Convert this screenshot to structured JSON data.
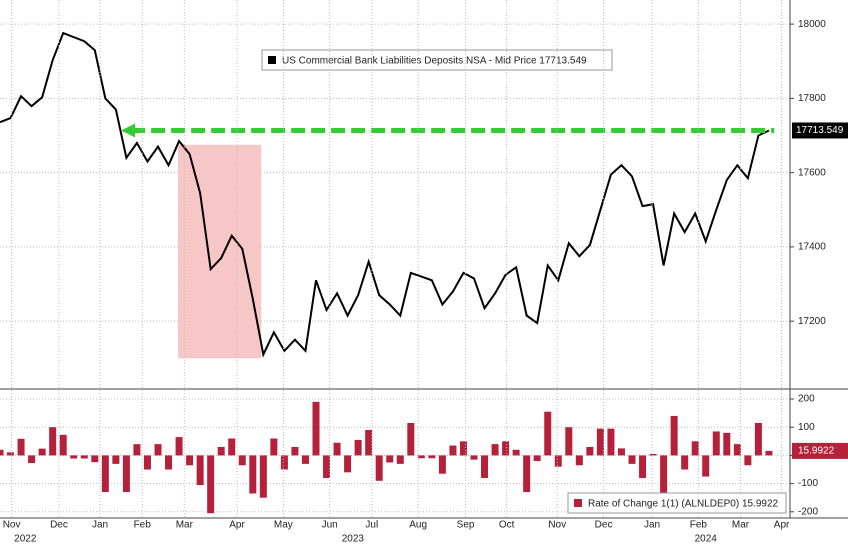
{
  "chart_data": [
    {
      "type": "line",
      "legend": "US Commercial Bank Liabilities Deposits NSA - Mid Price 17713.549",
      "last_label": "17713.549",
      "color": "#000000",
      "values": [
        17736,
        17747,
        17806,
        17779,
        17803,
        17903,
        17976,
        17965,
        17954,
        17930,
        17800,
        17770,
        17640,
        17680,
        17630,
        17670,
        17620,
        17685,
        17650,
        17545,
        17340,
        17370,
        17430,
        17395,
        17260,
        17110,
        17170,
        17120,
        17150,
        17120,
        17310,
        17230,
        17275,
        17215,
        17270,
        17360,
        17270,
        17245,
        17215,
        17330,
        17320,
        17310,
        17245,
        17280,
        17330,
        17315,
        17235,
        17275,
        17325,
        17345,
        17215,
        17195,
        17350,
        17310,
        17410,
        17375,
        17405,
        17500,
        17595,
        17620,
        17590,
        17510,
        17515,
        17350,
        17490,
        17440,
        17490,
        17415,
        17500,
        17580,
        17620,
        17585,
        17700,
        17713.549
      ],
      "xlim": [
        0,
        75
      ],
      "ylim": [
        17020,
        18065
      ],
      "yticks": [
        17200,
        17400,
        17600,
        17800,
        18000
      ],
      "grid": true,
      "highlight": {
        "x": [
          16.9,
          24.8
        ],
        "y": [
          17100,
          17675
        ],
        "color": "#f7c6c6"
      },
      "arrow": {
        "y": 17713.549,
        "x": [
          11.5,
          73.5
        ],
        "color": "#33cc33"
      }
    },
    {
      "type": "bar",
      "legend": "Rate of Change 1(1) (ALNLDEP0) 15.9922",
      "last_label": "15.9922",
      "color": "#b5213a",
      "values": [
        20,
        11,
        59,
        -27,
        24,
        100,
        73,
        -11,
        -11,
        -24,
        -130,
        -30,
        -130,
        40,
        -50,
        40,
        -50,
        65,
        -35,
        -105,
        -205,
        30,
        60,
        -35,
        -135,
        -150,
        60,
        -50,
        30,
        -30,
        190,
        -80,
        45,
        -60,
        55,
        90,
        -90,
        -25,
        -30,
        115,
        -10,
        -10,
        -65,
        35,
        50,
        -15,
        -80,
        40,
        50,
        20,
        -130,
        -20,
        155,
        -40,
        100,
        -35,
        30,
        95,
        95,
        25,
        -30,
        -80,
        5,
        -165,
        140,
        -50,
        50,
        -75,
        85,
        80,
        40,
        -35,
        115,
        15.9922
      ],
      "xlim": [
        0,
        75
      ],
      "ylim": [
        -222,
        232
      ],
      "yticks": [
        -200,
        -100,
        0,
        100,
        200
      ],
      "grid": true,
      "xticks": [
        {
          "value": 1.1,
          "label": "Nov"
        },
        {
          "value": 5.6,
          "label": "Dec"
        },
        {
          "value": 9.5,
          "label": "Jan"
        },
        {
          "value": 13.5,
          "label": "Feb"
        },
        {
          "value": 17.5,
          "label": "Mar"
        },
        {
          "value": 22.5,
          "label": "Apr"
        },
        {
          "value": 26.9,
          "label": "May"
        },
        {
          "value": 31.3,
          "label": "Jun"
        },
        {
          "value": 35.3,
          "label": "Jul"
        },
        {
          "value": 39.7,
          "label": "Aug"
        },
        {
          "value": 44.2,
          "label": "Sep"
        },
        {
          "value": 48.1,
          "label": "Oct"
        },
        {
          "value": 52.9,
          "label": "Nov"
        },
        {
          "value": 57.3,
          "label": "Dec"
        },
        {
          "value": 61.9,
          "label": "Jan"
        },
        {
          "value": 66.3,
          "label": "Feb"
        },
        {
          "value": 70.3,
          "label": "Mar"
        },
        {
          "value": 74.2,
          "label": "Apr"
        }
      ],
      "year_ticks": [
        {
          "value": 2.4,
          "label": "2022"
        },
        {
          "value": 33.5,
          "label": "2023"
        },
        {
          "value": 67,
          "label": "2024"
        }
      ]
    }
  ]
}
